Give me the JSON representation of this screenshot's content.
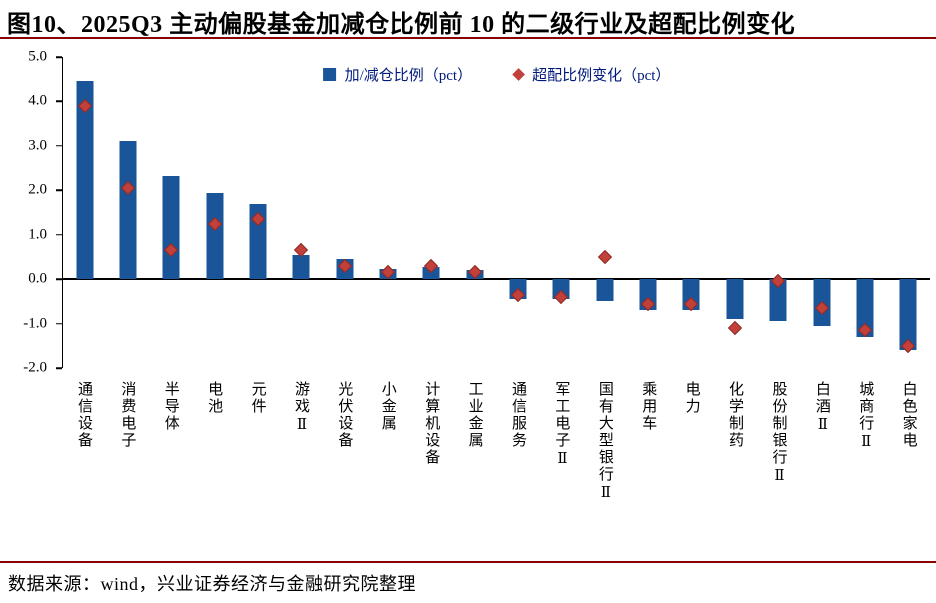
{
  "title": "图10、2025Q3 主动偏股基金加减仓比例前 10 的二级行业及超配比例变化",
  "footer": "数据来源：wind，兴业证券经济与金融研究院整理",
  "colors": {
    "bar": "#1A559A",
    "marker": "#C2403A",
    "rule": "#8B0000",
    "legend_text": "#001A7C",
    "axis": "#000000"
  },
  "chart_data": {
    "type": "bar",
    "title": "2025Q3 主动偏股基金加减仓比例前 10 的二级行业及超配比例变化",
    "categories": [
      "通信设备",
      "消费电子",
      "半导体",
      "电池",
      "元件",
      "游戏Ⅱ",
      "光伏设备",
      "小金属",
      "计算机设备",
      "工业金属",
      "通信服务",
      "军工电子Ⅱ",
      "国有大型银行Ⅱ",
      "乘用车",
      "电力",
      "化学制药",
      "股份制银行Ⅱ",
      "白酒Ⅱ",
      "城商行Ⅱ",
      "白色家电"
    ],
    "series": [
      {
        "name": "加/减仓比例（pct）",
        "type": "bar",
        "color": "#1A559A",
        "values": [
          4.45,
          3.1,
          2.32,
          1.95,
          1.7,
          0.55,
          0.45,
          0.22,
          0.28,
          0.2,
          -0.45,
          -0.45,
          -0.5,
          -0.7,
          -0.7,
          -0.9,
          -0.95,
          -1.05,
          -1.3,
          -1.6
        ]
      },
      {
        "name": "超配比例变化（pct）",
        "type": "scatter",
        "marker": "diamond",
        "color": "#C2403A",
        "values": [
          3.9,
          2.05,
          0.65,
          1.25,
          1.35,
          0.65,
          0.3,
          0.15,
          0.3,
          0.15,
          -0.35,
          -0.4,
          0.5,
          -0.55,
          -0.55,
          -1.1,
          -0.05,
          -0.65,
          -1.15,
          -1.5
        ]
      }
    ],
    "ylim": [
      -2.0,
      5.0
    ],
    "yticks": [
      5.0,
      4.0,
      3.0,
      2.0,
      1.0,
      0.0,
      -1.0,
      -2.0
    ],
    "grid": false,
    "legend_position": "top-center"
  }
}
